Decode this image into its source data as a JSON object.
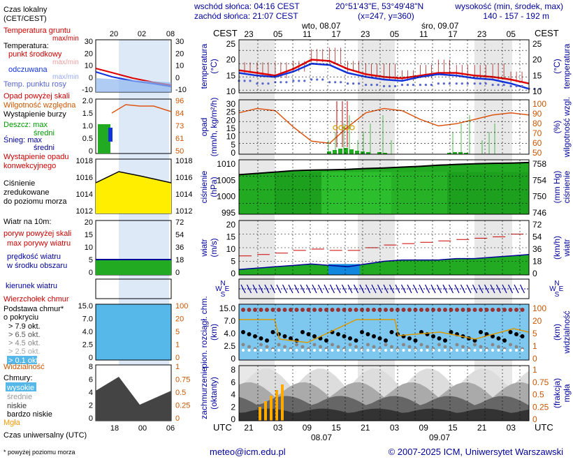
{
  "header": {
    "sunrise": "wschód słońca: 04:16 CEST",
    "sunset": "zachód słońca: 21:07 CEST",
    "coords": "20°51'43\"E, 53°49'48\"N",
    "grid": "(x=247, y=360)",
    "elev_title": "wysokość (min, środek, max)",
    "elev_values": "140 - 157 - 192 m"
  },
  "legend": {
    "time_local": "Czas lokalny",
    "time_local_sub": "(CET/CEST)",
    "local_ticks": [
      "20",
      "02",
      "08"
    ],
    "soil_temp": "Temperatura gruntu",
    "max_min_1": "max/min",
    "temperature": "Temperatura:",
    "mid_point": "punkt środkowy",
    "max_min_2": "max/min",
    "feels_like": "odczuwana",
    "max_min_3": "max/min",
    "dew_point": "Temp. punktu rosy",
    "precip_over_scale": "Opad powyżej skali",
    "humidity": "Wilgotność względna",
    "storm": "Wystąpienie burzy",
    "rain_max": "Deszcz: max",
    "rain_mid": "średni",
    "snow_max": "Śnieg: max",
    "snow_mid": "średni",
    "conv_precip_1": "Wystąpienie opadu",
    "conv_precip_2": "konwekcyjnego",
    "pressure_1": "Ciśnienie",
    "pressure_2": "zredukowane",
    "pressure_3": "do poziomu morza",
    "wind_title": "Wiatr na 10m:",
    "gust_over_scale": "poryw powyżej skali",
    "gust_max": "max porywy wiatru",
    "wind_speed_1": "prędkość wiatru",
    "wind_speed_2": "w środku obszaru",
    "wind_dir": "kierunek wiatru",
    "cloud_top": "Wierzchołek chmur",
    "cloud_base_1": "Podstawa chmur*",
    "cloud_base_2": "o pokryciu",
    "okt_79": "> 7.9 okt.",
    "okt_65": "> 6.5 okt.",
    "okt_45": "> 4.5 okt.",
    "okt_25": "> 2.5 okt.",
    "okt_01": "> 0.1 okt.",
    "visibility": "Widzialność",
    "clouds": "Chmury:",
    "cl_high": "wysokie",
    "cl_mid": "średnie",
    "cl_low": "niskie",
    "cl_vlow": "bardzo niskie",
    "fog": "Mgła",
    "utc_label": "Czas uniwersalny (UTC)",
    "utc_ticks": [
      "18",
      "00",
      "06"
    ],
    "footnote": "* powyżej poziomu morza"
  },
  "legend_axes": {
    "temp_left": [
      "30",
      "20",
      "10",
      "0",
      "-10"
    ],
    "temp_right": [
      "30",
      "20",
      "10",
      "0",
      "-10"
    ],
    "precip_left": [
      "2.0",
      "1.5",
      "1.0",
      "0.5",
      "0"
    ],
    "hum_right": [
      "96",
      "84",
      "73",
      "61",
      "50"
    ],
    "pres_left": [
      "1018",
      "1016",
      "1014",
      "1012"
    ],
    "pres_right": [
      "1018",
      "1016",
      "1014",
      "1012"
    ],
    "wind_left": [
      "20",
      "15",
      "10",
      "5",
      "0"
    ],
    "wind_right": [
      "72",
      "54",
      "36",
      "18",
      "0"
    ],
    "cloud_left": [
      "15.0",
      "7.0",
      "4.0",
      "2.5",
      "0"
    ],
    "cloud_right": [
      "100",
      "20",
      "5",
      "1",
      "0"
    ],
    "cov_left": [
      "8",
      "6",
      "4",
      "2",
      "0"
    ],
    "cov_right": [
      "1",
      "0.75",
      "0.5",
      "0.25",
      "0"
    ]
  },
  "main": {
    "cest_label": "CEST",
    "utc_label": "UTC",
    "day1": "wto, 08.07",
    "day2": "śro, 09.07",
    "date1": "08.07",
    "date2": "09.07",
    "top_ticks": [
      "23",
      "05",
      "11",
      "17",
      "23",
      "05",
      "11",
      "17",
      "23",
      "05"
    ],
    "bottom_ticks": [
      "21",
      "03",
      "09",
      "15",
      "21",
      "03",
      "09",
      "15",
      "21",
      "03"
    ],
    "panels": {
      "temp": {
        "left_title": "temperatura",
        "left_unit": "(°C)",
        "right_title": "temperatura",
        "right_unit": "(°C)",
        "ticks_left": [
          "25",
          "20",
          "15",
          "10"
        ],
        "ticks_right": [
          "25",
          "20",
          "15",
          "10"
        ]
      },
      "precip": {
        "left_title": "opad",
        "left_unit": "(mm/h, kg/m²/h)",
        "right_title": "wilgotność wzgl.",
        "right_unit": "(%)",
        "ticks_left": [
          "30",
          "25",
          "20",
          "15",
          "10",
          "5",
          "0"
        ],
        "ticks_right": [
          "100",
          "90",
          "80",
          "70",
          "60",
          "50"
        ]
      },
      "pres": {
        "left_title": "ciśnienie",
        "left_unit": "(hPa)",
        "right_title": "ciśnienie",
        "right_unit": "(mm Hg)",
        "ticks_left": [
          "1010",
          "1005",
          "1000",
          "995"
        ],
        "ticks_right": [
          "758",
          "754",
          "750",
          "746"
        ]
      },
      "wind": {
        "left_title": "wiatr",
        "left_unit": "(m/s)",
        "right_title": "wiatr",
        "right_unit": "(km/h)",
        "ticks_left": [
          "20",
          "15",
          "10",
          "5",
          "0"
        ],
        "ticks_right": [
          "72",
          "54",
          "36",
          "18",
          "0"
        ]
      },
      "dir": {
        "compass_n": "N",
        "compass_w": "W",
        "compass_e": "E",
        "compass_s": "S"
      },
      "cloud": {
        "left_title": "pion. rozciągł. chm.",
        "left_unit": "(km)",
        "right_title": "widzialność",
        "right_unit": "(km)",
        "ticks_left": [
          "15.0",
          "7.0",
          "4.0",
          "2.5",
          "0"
        ],
        "ticks_right": [
          "100",
          "20",
          "5",
          "1",
          "0"
        ]
      },
      "cover": {
        "left_title": "zachmurzenie",
        "left_unit": "(oktanty)",
        "right_title": "mgła",
        "right_unit": "(frakcja)",
        "ticks_left": [
          "8",
          "6",
          "4",
          "2",
          "0"
        ],
        "ticks_right": [
          "1",
          "0.75",
          "0.5",
          "0.25",
          "0"
        ]
      }
    }
  },
  "footer": {
    "email": "meteo@icm.edu.pl",
    "copyright": "© 2007-2025 ICM, Uniwersytet Warszawski"
  },
  "colors": {
    "title_blue": "#000099",
    "label_red": "#cc0000",
    "axis_orange": "#cc5500",
    "night_grey": "#e8e8e8",
    "temp_red": "#dd0000",
    "feels_blue": "#1133dd",
    "pressure_green": "#22aa22",
    "wind_green": "#22aa22",
    "cloud_bg": "#7ec8f0"
  },
  "chart_data": [
    {
      "type": "line",
      "panel": "temperature",
      "x": [
        "08.07 00",
        "08.07 03",
        "08.07 06",
        "08.07 09",
        "08.07 12",
        "08.07 15",
        "08.07 18",
        "08.07 21",
        "09.07 00",
        "09.07 03",
        "09.07 06",
        "09.07 09",
        "09.07 12",
        "09.07 15",
        "09.07 18",
        "09.07 21",
        "10.07 00"
      ],
      "series": [
        {
          "values": [
            17.5,
            16.5,
            15.5,
            18,
            21.5,
            21,
            18,
            16,
            15,
            14.5,
            15.5,
            16.5,
            16.5,
            15.5,
            15,
            14,
            12.5
          ]
        },
        {
          "values": [
            16.5,
            15.5,
            15,
            17,
            20,
            19.5,
            16.5,
            15,
            14,
            13.5,
            15,
            16,
            15.5,
            14.5,
            14,
            12.5,
            10.5
          ]
        },
        {
          "values": [
            13.5,
            12.5,
            13,
            13.5,
            14,
            13,
            12.5,
            12,
            11.5,
            12,
            12,
            12.5,
            12.5,
            12.5,
            12,
            11.5,
            10.5
          ]
        }
      ],
      "ylim": [
        9,
        29
      ]
    },
    {
      "type": "line",
      "panel": "humidity",
      "x": [
        "08.07 00",
        "08.07 03",
        "08.07 06",
        "08.07 09",
        "08.07 12",
        "08.07 15",
        "08.07 18",
        "08.07 21",
        "09.07 00",
        "09.07 03",
        "09.07 06",
        "09.07 09",
        "09.07 12",
        "09.07 15",
        "09.07 18",
        "09.07 21",
        "10.07 00"
      ],
      "values": [
        88,
        92,
        90,
        75,
        62,
        60,
        75,
        88,
        92,
        90,
        82,
        76,
        78,
        82,
        86,
        88,
        86
      ],
      "ylim": [
        50,
        100
      ]
    },
    {
      "type": "area",
      "panel": "pressure",
      "x": [
        "08.07 00",
        "08.07 03",
        "08.07 06",
        "08.07 09",
        "08.07 12",
        "08.07 15",
        "08.07 18",
        "08.07 21",
        "09.07 00",
        "09.07 03",
        "09.07 06",
        "09.07 09",
        "09.07 12",
        "09.07 15",
        "09.07 18",
        "09.07 21",
        "10.07 00"
      ],
      "values": [
        1005.5,
        1006,
        1006.5,
        1007,
        1007.2,
        1007.3,
        1007.5,
        1007.8,
        1008,
        1008.3,
        1008.6,
        1009,
        1009.3,
        1009.5,
        1009.7,
        1009.8,
        1010
      ],
      "ylim": [
        991,
        1011
      ]
    },
    {
      "type": "line",
      "panel": "wind",
      "x": [
        "08.07 00",
        "08.07 03",
        "08.07 06",
        "08.07 09",
        "08.07 12",
        "08.07 15",
        "08.07 18",
        "08.07 21",
        "09.07 00",
        "09.07 03",
        "09.07 06",
        "09.07 09",
        "09.07 12",
        "09.07 15",
        "09.07 18",
        "09.07 21",
        "10.07 00"
      ],
      "series": [
        {
          "values": [
            2,
            2.5,
            3,
            3.5,
            4,
            3.5,
            3,
            4,
            5,
            5.5,
            5.5,
            5.5,
            6,
            6,
            6.5,
            7,
            7.5
          ]
        },
        {
          "values": [
            7,
            7.5,
            8,
            9,
            9.5,
            9,
            9,
            10,
            11,
            11.5,
            12,
            12.5,
            13,
            13.5,
            14,
            15,
            16
          ]
        }
      ],
      "ylim": [
        0,
        20
      ]
    }
  ]
}
